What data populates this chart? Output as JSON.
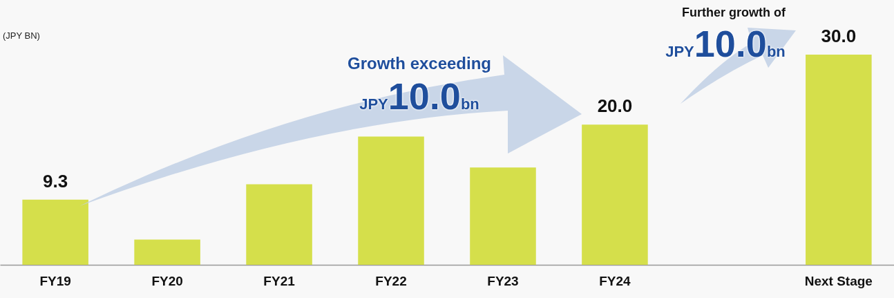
{
  "chart_data": {
    "type": "bar",
    "ylabel": "(JPY BN)",
    "categories": [
      "FY19",
      "FY20",
      "FY21",
      "FY22",
      "FY23",
      "FY24",
      null,
      "Next Stage"
    ],
    "values": [
      9.3,
      3.6,
      11.5,
      18.3,
      13.9,
      20.0,
      null,
      30.0
    ],
    "value_labels": [
      "9.3",
      null,
      null,
      null,
      null,
      "20.0",
      null,
      "30.0"
    ],
    "color": "#d5df4b",
    "annotations": [
      "Growth exceeding",
      "JPY10.0bn",
      "Further growth of",
      "JPY10.0bn"
    ]
  }
}
